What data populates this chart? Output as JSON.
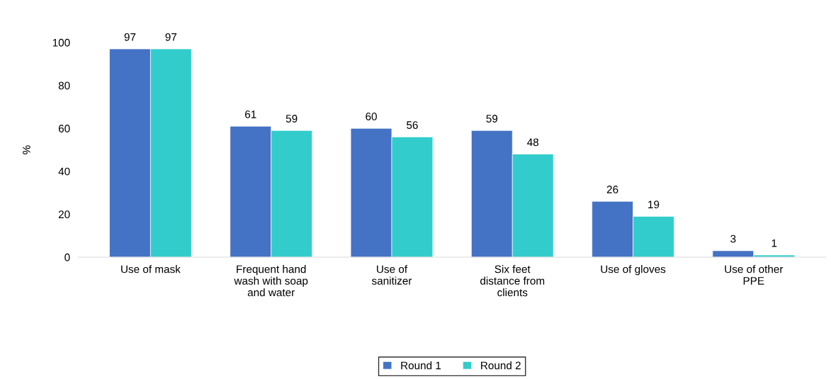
{
  "chart_data": {
    "type": "bar",
    "ylabel": "%",
    "categories": [
      "Use of mask",
      "Frequent hand wash with soap and water",
      "Use of sanitizer",
      "Six feet distance from clients",
      "Use of gloves",
      "Use of other PPE"
    ],
    "series": [
      {
        "name": "Round 1",
        "color": "#4472c4",
        "values": [
          97,
          61,
          60,
          59,
          26,
          3
        ]
      },
      {
        "name": "Round 2",
        "color": "#33cccc",
        "values": [
          97,
          59,
          56,
          48,
          19,
          1
        ]
      }
    ],
    "ylim": [
      0,
      100
    ],
    "yticks": [
      0,
      20,
      40,
      60,
      80,
      100
    ],
    "grid": false,
    "legend": "bottom",
    "data_labels": true
  }
}
